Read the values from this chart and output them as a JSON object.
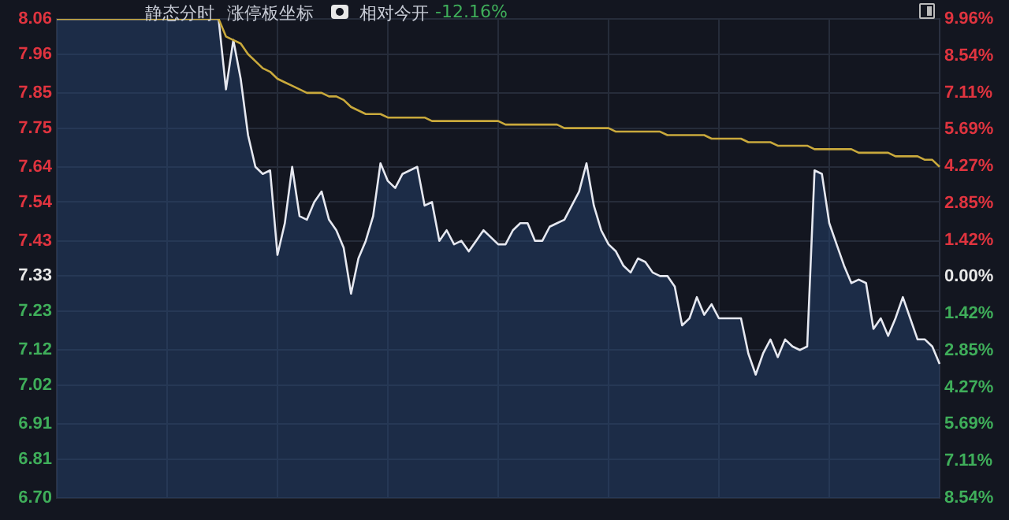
{
  "chart_data": {
    "type": "area",
    "annotations": [
      "静态分时",
      "涨停板坐标",
      "相对今开",
      "-12.16%"
    ],
    "categories": [
      null,
      null,
      null,
      null,
      null,
      null,
      null,
      null,
      null,
      null,
      null,
      null,
      null,
      null,
      null,
      null,
      null,
      null,
      null,
      null,
      null,
      null,
      null,
      null,
      null,
      null,
      null,
      null,
      null,
      null,
      null,
      null,
      null,
      null,
      null,
      null,
      null,
      null,
      null,
      null,
      null,
      null,
      null,
      null,
      null,
      null,
      null,
      null,
      null,
      null,
      null,
      null,
      null,
      null,
      null,
      null,
      null,
      null,
      null,
      null,
      null,
      null,
      null,
      null,
      null,
      null,
      null,
      null,
      null,
      null,
      null,
      null,
      null,
      null,
      null,
      null,
      null,
      null,
      null,
      null,
      null,
      null,
      null,
      null,
      null,
      null,
      null,
      null,
      null,
      null,
      null,
      null,
      null,
      null,
      null,
      null,
      null,
      null,
      null,
      null,
      null,
      null,
      null,
      null,
      null,
      null,
      null,
      null,
      null,
      null,
      null,
      null,
      null,
      null,
      null,
      null,
      null,
      null,
      null,
      null,
      null
    ],
    "series": [
      {
        "type": "area",
        "color": "#e6e8f0",
        "values": [
          8.06,
          8.06,
          8.06,
          8.06,
          8.06,
          8.06,
          8.06,
          8.06,
          8.06,
          8.06,
          8.06,
          8.06,
          8.06,
          8.06,
          8.06,
          8.06,
          8.06,
          8.06,
          8.06,
          8.06,
          8.06,
          8.06,
          8.06,
          7.86,
          8.0,
          7.89,
          7.73,
          7.64,
          7.62,
          7.63,
          7.39,
          7.48,
          7.64,
          7.5,
          7.49,
          7.54,
          7.57,
          7.49,
          7.46,
          7.41,
          7.28,
          7.38,
          7.43,
          7.5,
          7.65,
          7.6,
          7.58,
          7.62,
          7.63,
          7.64,
          7.53,
          7.54,
          7.43,
          7.46,
          7.42,
          7.43,
          7.4,
          7.43,
          7.46,
          7.44,
          7.42,
          7.42,
          7.46,
          7.48,
          7.48,
          7.43,
          7.43,
          7.47,
          7.48,
          7.49,
          7.53,
          7.57,
          7.65,
          7.53,
          7.46,
          7.42,
          7.4,
          7.36,
          7.34,
          7.38,
          7.37,
          7.34,
          7.33,
          7.33,
          7.3,
          7.19,
          7.21,
          7.27,
          7.22,
          7.25,
          7.21,
          7.21,
          7.21,
          7.21,
          7.11,
          7.05,
          7.11,
          7.15,
          7.1,
          7.15,
          7.13,
          7.12,
          7.13,
          7.63,
          7.62,
          7.48,
          7.42,
          7.36,
          7.31,
          7.32,
          7.31,
          7.18,
          7.21,
          7.16,
          7.21,
          7.27,
          7.21,
          7.15,
          7.15,
          7.13,
          7.08
        ]
      },
      {
        "type": "line",
        "color": "#c9a93c",
        "values": [
          8.06,
          8.06,
          8.06,
          8.06,
          8.06,
          8.06,
          8.06,
          8.06,
          8.06,
          8.06,
          8.06,
          8.06,
          8.06,
          8.06,
          8.06,
          8.06,
          8.06,
          8.06,
          8.06,
          8.06,
          8.06,
          8.06,
          8.06,
          8.01,
          8.0,
          7.99,
          7.96,
          7.94,
          7.92,
          7.91,
          7.89,
          7.88,
          7.87,
          7.86,
          7.85,
          7.85,
          7.85,
          7.84,
          7.84,
          7.83,
          7.81,
          7.8,
          7.79,
          7.79,
          7.79,
          7.78,
          7.78,
          7.78,
          7.78,
          7.78,
          7.78,
          7.77,
          7.77,
          7.77,
          7.77,
          7.77,
          7.77,
          7.77,
          7.77,
          7.77,
          7.77,
          7.76,
          7.76,
          7.76,
          7.76,
          7.76,
          7.76,
          7.76,
          7.76,
          7.75,
          7.75,
          7.75,
          7.75,
          7.75,
          7.75,
          7.75,
          7.74,
          7.74,
          7.74,
          7.74,
          7.74,
          7.74,
          7.74,
          7.73,
          7.73,
          7.73,
          7.73,
          7.73,
          7.73,
          7.72,
          7.72,
          7.72,
          7.72,
          7.72,
          7.71,
          7.71,
          7.71,
          7.71,
          7.7,
          7.7,
          7.7,
          7.7,
          7.7,
          7.69,
          7.69,
          7.69,
          7.69,
          7.69,
          7.69,
          7.68,
          7.68,
          7.68,
          7.68,
          7.68,
          7.67,
          7.67,
          7.67,
          7.67,
          7.66,
          7.66,
          7.64
        ]
      }
    ],
    "ylim": [
      6.7,
      8.06
    ],
    "yticks": [
      8.06,
      7.96,
      7.85,
      7.75,
      7.64,
      7.54,
      7.43,
      7.33,
      7.23,
      7.12,
      7.02,
      6.91,
      6.81,
      {
        "value": 6.7,
        "label": "6.70"
      }
    ],
    "y2lim": [
      -8.54,
      9.96
    ],
    "y2ticks": [
      {
        "value": 9.96,
        "label": "9.96%"
      },
      {
        "value": 8.54,
        "label": "8.54%"
      },
      {
        "value": 7.11,
        "label": "7.11%"
      },
      {
        "value": 5.69,
        "label": "5.69%"
      },
      {
        "value": 4.27,
        "label": "4.27%"
      },
      {
        "value": 2.85,
        "label": "2.85%"
      },
      {
        "value": 1.42,
        "label": "1.42%"
      },
      {
        "value": 0,
        "label": "0.00%"
      },
      {
        "value": -1.42,
        "label": "1.42%"
      },
      {
        "value": -2.85,
        "label": "2.85%"
      },
      {
        "value": -4.27,
        "label": "4.27%"
      },
      {
        "value": -5.69,
        "label": "5.69%"
      },
      {
        "value": -7.11,
        "label": "7.11%"
      },
      {
        "value": -8.54,
        "label": "8.54%"
      }
    ],
    "grid": true,
    "legend": false,
    "marker": "none"
  }
}
